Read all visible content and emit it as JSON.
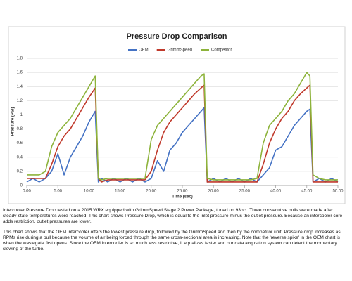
{
  "chart_data": {
    "type": "line",
    "title": "Pressure Drop Comparison",
    "xlabel": "Time (sec)",
    "ylabel": "Pressure (PSI)",
    "x": [
      0,
      1,
      2,
      3,
      4,
      5,
      6,
      7,
      8,
      9,
      10,
      11,
      11.5,
      12,
      13,
      14,
      15,
      16,
      17,
      18,
      19,
      20,
      21,
      22,
      23,
      24,
      25,
      26,
      27,
      28,
      28.5,
      29,
      30,
      31,
      32,
      33,
      34,
      35,
      36,
      37,
      38,
      39,
      40,
      41,
      42,
      43,
      44,
      45,
      45.5,
      46,
      47,
      48,
      49,
      50
    ],
    "series": [
      {
        "name": "OEM",
        "color": "#4472c4",
        "values": [
          0.05,
          0.1,
          0.05,
          0.1,
          0.2,
          0.45,
          0.15,
          0.4,
          0.55,
          0.7,
          0.9,
          1.05,
          0.05,
          0.1,
          0.05,
          0.1,
          0.05,
          0.1,
          0.05,
          0.1,
          0.05,
          0.1,
          0.35,
          0.2,
          0.5,
          0.6,
          0.75,
          0.85,
          0.95,
          1.05,
          1.1,
          0.05,
          0.1,
          0.05,
          0.1,
          0.05,
          0.1,
          0.05,
          0.1,
          0.05,
          0.15,
          0.25,
          0.5,
          0.55,
          0.7,
          0.85,
          0.95,
          1.05,
          1.08,
          0.05,
          0.1,
          0.05,
          0.1,
          0.05
        ]
      },
      {
        "name": "GrimmSpeed",
        "color": "#c0392b",
        "values": [
          0.1,
          0.1,
          0.1,
          0.1,
          0.3,
          0.55,
          0.7,
          0.8,
          0.95,
          1.1,
          1.25,
          1.38,
          0.1,
          0.05,
          0.08,
          0.08,
          0.08,
          0.08,
          0.08,
          0.08,
          0.08,
          0.2,
          0.5,
          0.75,
          0.9,
          1.0,
          1.1,
          1.2,
          1.3,
          1.38,
          1.42,
          0.05,
          0.05,
          0.05,
          0.05,
          0.05,
          0.05,
          0.05,
          0.05,
          0.05,
          0.3,
          0.6,
          0.8,
          0.95,
          1.05,
          1.2,
          1.3,
          1.38,
          1.42,
          0.05,
          0.05,
          0.05,
          0.05,
          0.05
        ]
      },
      {
        "name": "Competitor",
        "color": "#8db33b",
        "values": [
          0.15,
          0.15,
          0.15,
          0.2,
          0.55,
          0.75,
          0.85,
          0.95,
          1.1,
          1.25,
          1.4,
          1.55,
          0.1,
          0.08,
          0.1,
          0.1,
          0.1,
          0.1,
          0.1,
          0.1,
          0.1,
          0.65,
          0.85,
          0.95,
          1.05,
          1.15,
          1.25,
          1.35,
          1.45,
          1.55,
          1.58,
          0.1,
          0.08,
          0.08,
          0.08,
          0.08,
          0.08,
          0.08,
          0.08,
          0.1,
          0.6,
          0.85,
          0.95,
          1.05,
          1.2,
          1.3,
          1.45,
          1.6,
          1.55,
          0.15,
          0.1,
          0.08,
          0.08,
          0.08
        ]
      }
    ],
    "xlim": [
      0,
      50
    ],
    "xticks": [
      {
        "value": 0,
        "label": "0.00"
      },
      {
        "value": 5,
        "label": "5.00"
      },
      {
        "value": 10,
        "label": "10.00"
      },
      {
        "value": 15,
        "label": "15.00"
      },
      {
        "value": 20,
        "label": "20.00"
      },
      {
        "value": 25,
        "label": "25.00"
      },
      {
        "value": 30,
        "label": "30.00"
      },
      {
        "value": 35,
        "label": "35.00"
      },
      {
        "value": 40,
        "label": "40.00"
      },
      {
        "value": 45,
        "label": "45.00"
      },
      {
        "value": 50,
        "label": "50.00"
      }
    ],
    "ylim": [
      0,
      1.8
    ],
    "yticks": [
      0,
      0.2,
      0.4,
      0.6,
      0.8,
      1,
      1.2,
      1.4,
      1.6,
      1.8
    ],
    "grid": true,
    "legend": "top",
    "caption": [
      "Intercooler Pressure Drop tested on a 2015 WRX equipped with GrimmSpeed Stage 2 Power Package, tuned on 93oct. Three consecutive pulls were made after steady-state temperatures were reached. This chart shows Pressure Drop, which is equal to the inlet pressure minus the outlet pressure. Because an intercooler core adds restriction, outlet pressures are lower.",
      "This chart shows that the OEM intercooler offers the lowest pressure drop, followed by the GrimmSpeed and then by the competitor unit. Pressure drop increases as RPMs rise during a pull because the volume of air being forced through the same cross-sectional area is increasing. Note that the 'reverse spike' in the OEM chart is when the wastegate first opens. Since the OEM intercooler is so much less restrictive, it equalizes faster and our data acqusition system can detect the momentary slowing of the turbo."
    ]
  }
}
